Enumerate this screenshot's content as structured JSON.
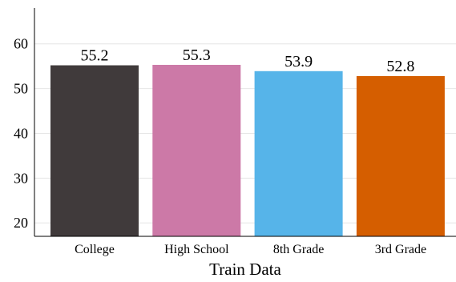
{
  "chart_data": {
    "type": "bar",
    "title": "",
    "xlabel": "Train Data",
    "ylabel": "",
    "categories": [
      "College",
      "High School",
      "8th Grade",
      "3rd Grade"
    ],
    "values": [
      55.2,
      55.3,
      53.9,
      52.8
    ],
    "value_labels": [
      "55.2",
      "55.3",
      "53.9",
      "52.8"
    ],
    "colors": [
      "#403a3b",
      "#cc79a7",
      "#56b4e9",
      "#d55e00"
    ],
    "ylim": [
      17,
      68
    ],
    "yticks": [
      20,
      30,
      40,
      50,
      60
    ],
    "grid": true,
    "legend": "none"
  }
}
